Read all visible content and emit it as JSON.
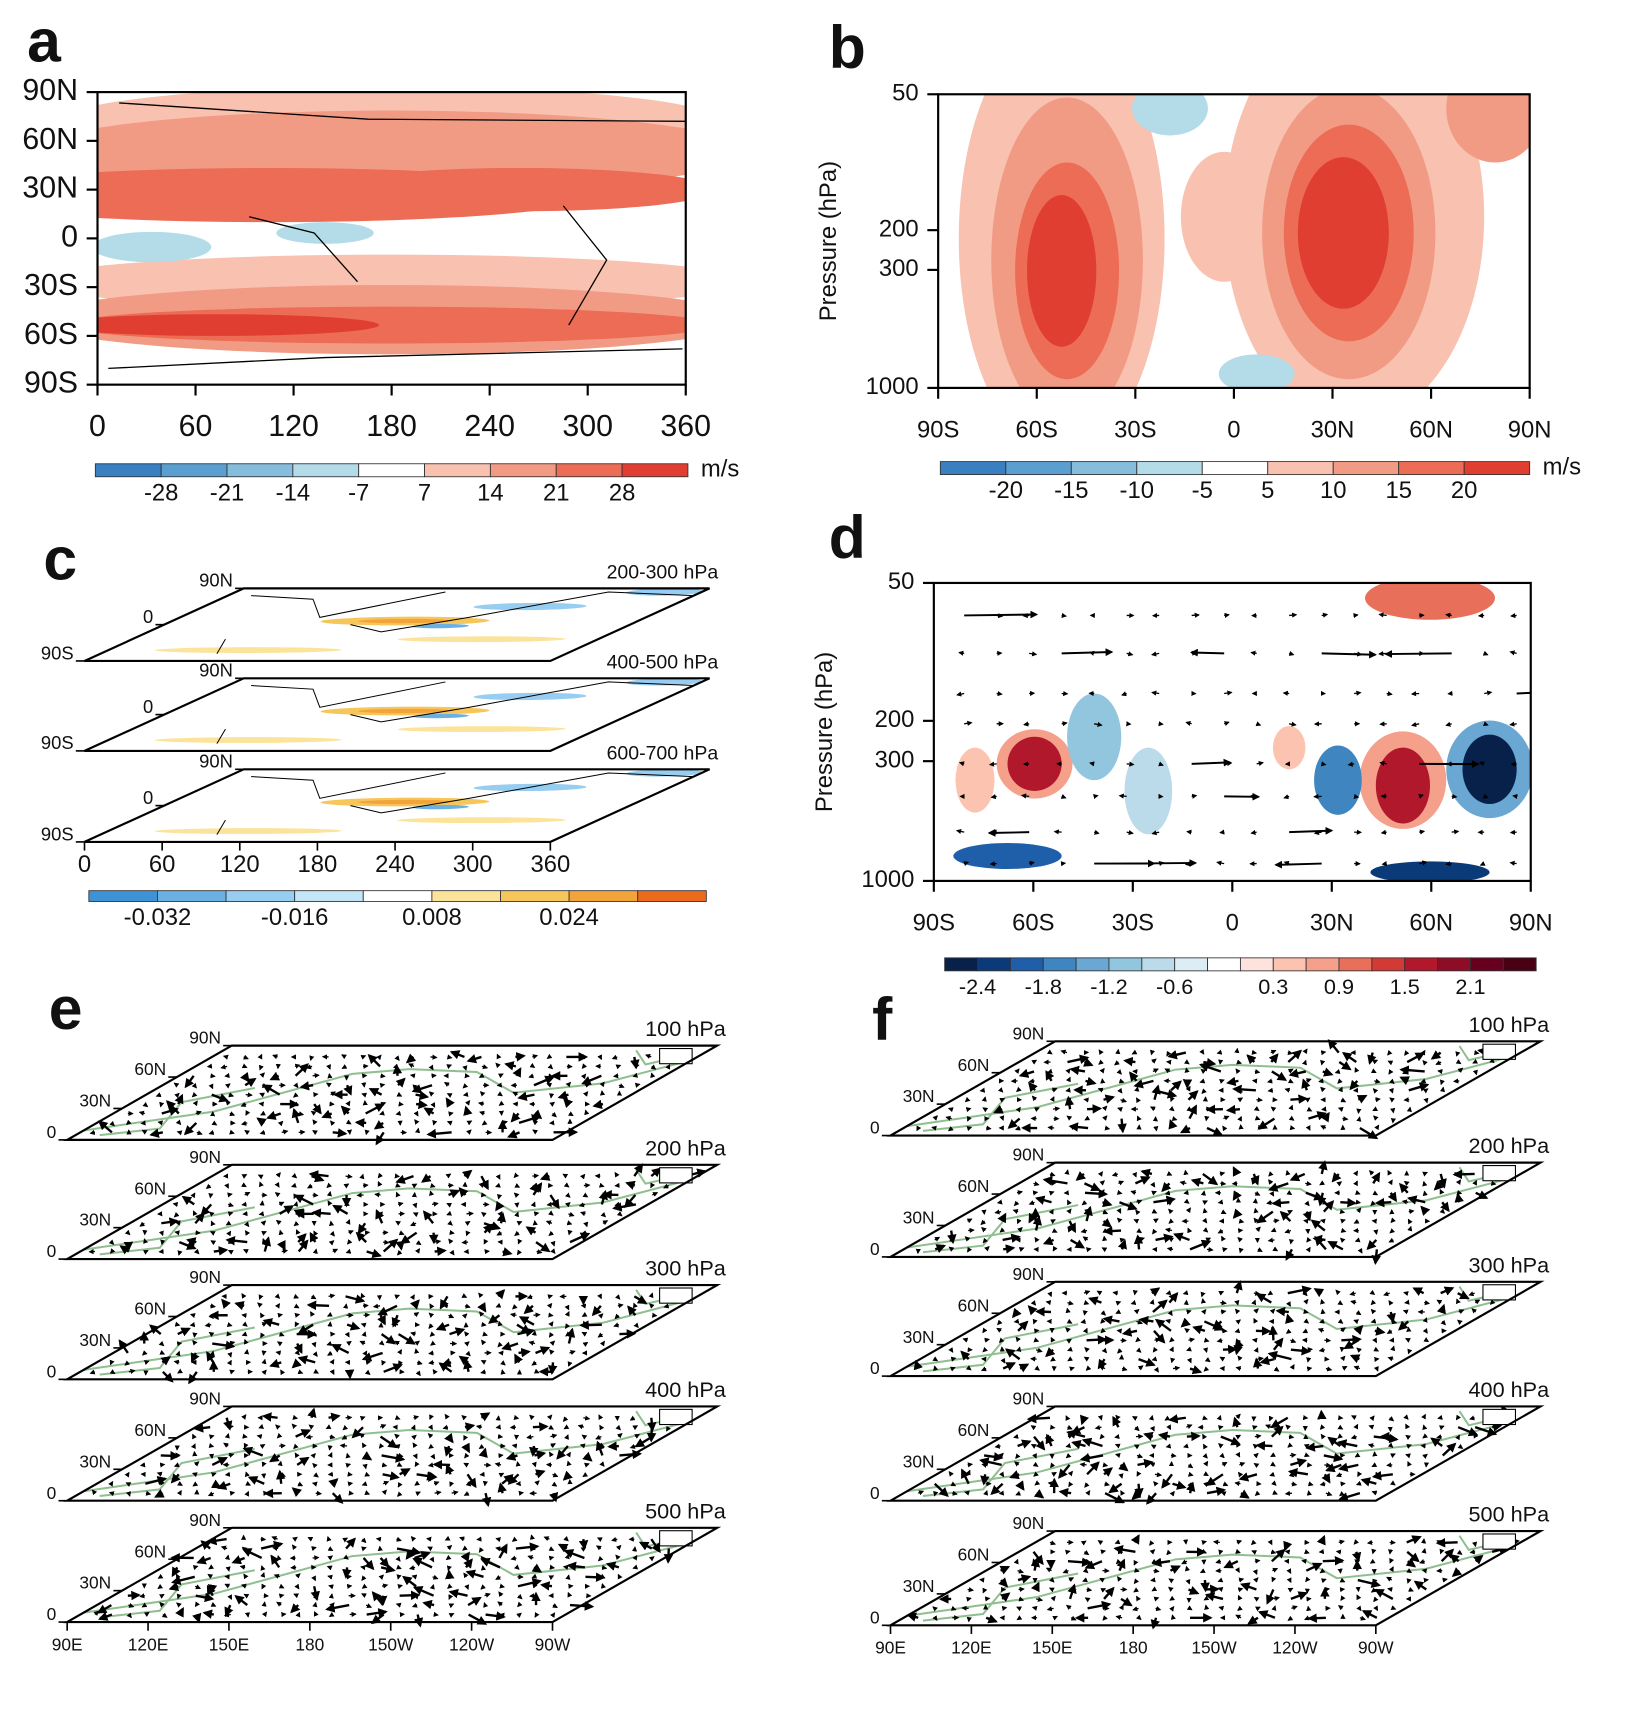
{
  "chart_data": [
    {
      "type": "contour_map",
      "label": "a",
      "xlim": [
        0,
        360
      ],
      "xticks": [
        0,
        60,
        120,
        180,
        240,
        300,
        360
      ],
      "ylim": [
        -90,
        90
      ],
      "yticks": [
        {
          "value": 90,
          "label": "90N"
        },
        {
          "value": 60,
          "label": "60N"
        },
        {
          "value": 30,
          "label": "30N"
        },
        0,
        {
          "value": -30,
          "label": "30S"
        },
        {
          "value": -60,
          "label": "60S"
        },
        {
          "value": -90,
          "label": "90S"
        }
      ],
      "colorbar": {
        "colors": [
          "#3a7fc0",
          "#5b9fd0",
          "#86bcdc",
          "#b3dbe8",
          "#ffffff",
          "#f8c1b0",
          "#f29b84",
          "#ec6c55",
          "#e03e30"
        ],
        "ticks": [
          -28,
          -21,
          -14,
          -7,
          7,
          14,
          21,
          28
        ],
        "unit": "m/s"
      }
    },
    {
      "type": "contour_section",
      "label": "b",
      "ylabel": "Pressure (hPa)",
      "ylim": [
        1000,
        50
      ],
      "ylog": true,
      "yticks": [
        50,
        200,
        300,
        1000
      ],
      "xlim": [
        -90,
        90
      ],
      "xticks": [
        {
          "value": -90,
          "label": "90S"
        },
        {
          "value": -60,
          "label": "60S"
        },
        {
          "value": -30,
          "label": "30S"
        },
        0,
        {
          "value": 30,
          "label": "30N"
        },
        {
          "value": 60,
          "label": "60N"
        },
        {
          "value": 90,
          "label": "90N"
        }
      ],
      "colorbar": {
        "colors": [
          "#3a7fc0",
          "#5b9fd0",
          "#86bcdc",
          "#b3dbe8",
          "#ffffff",
          "#f8c1b0",
          "#f29b84",
          "#ec6c55",
          "#e03e30"
        ],
        "ticks": [
          -20,
          -15,
          -10,
          -5,
          5,
          10,
          15,
          20
        ],
        "unit": "m/s"
      }
    },
    {
      "type": "layered_map",
      "label": "c",
      "layers": [
        "200-300 hPa",
        "400-500 hPa",
        "600-700 hPa"
      ],
      "ylim": [
        -90,
        90
      ],
      "yticks": [
        {
          "value": 90,
          "label": "90N"
        },
        0,
        {
          "value": -90,
          "label": "90S"
        }
      ],
      "xlim": [
        0,
        360
      ],
      "xticks": [
        0,
        60,
        120,
        180,
        240,
        300,
        360
      ],
      "colorbar": {
        "colors": [
          "#3e93d6",
          "#6bb0e3",
          "#97cdf0",
          "#c2e5f7",
          "#ffffff",
          "#fbe39a",
          "#f7c65a",
          "#f2a43a",
          "#ec6a1c"
        ],
        "ticks": [
          -0.032,
          -0.016,
          0.008,
          0.024
        ]
      }
    },
    {
      "type": "vector_section",
      "label": "d",
      "ylabel": "Pressure (hPa)",
      "ylim": [
        1000,
        50
      ],
      "ylog": true,
      "yticks": [
        50,
        200,
        300,
        1000
      ],
      "xlim": [
        -90,
        90
      ],
      "xticks": [
        {
          "value": -90,
          "label": "90S"
        },
        {
          "value": -60,
          "label": "60S"
        },
        {
          "value": -30,
          "label": "30S"
        },
        0,
        {
          "value": 30,
          "label": "30N"
        },
        {
          "value": 60,
          "label": "60N"
        },
        {
          "value": 90,
          "label": "90N"
        }
      ],
      "colorbar": {
        "colors": [
          "#08214a",
          "#0b3a78",
          "#1f5ea8",
          "#3f86c0",
          "#6aa8d3",
          "#92c5de",
          "#bcdbea",
          "#dcedf5",
          "#ffffff",
          "#fde3dc",
          "#fbc3b0",
          "#f4a08a",
          "#e8705b",
          "#d23a35",
          "#b2182b",
          "#8c0d25",
          "#67001f",
          "#4a0014"
        ],
        "ticks": [
          -2.4,
          -1.8,
          -1.2,
          -0.6,
          0.3,
          0.9,
          1.5,
          2.1
        ]
      }
    },
    {
      "type": "layered_vector_map",
      "label": "e",
      "layers": [
        "100 hPa",
        "200 hPa",
        "300 hPa",
        "400 hPa",
        "500 hPa"
      ],
      "ylim": [
        0,
        90
      ],
      "yticks": [
        0,
        {
          "value": 30,
          "label": "30N"
        },
        {
          "value": 60,
          "label": "60N"
        },
        {
          "value": 90,
          "label": "90N"
        }
      ],
      "xlim": [
        90,
        270
      ],
      "xticks": [
        {
          "value": 90,
          "label": "90E"
        },
        {
          "value": 120,
          "label": "120E"
        },
        {
          "value": 150,
          "label": "150E"
        },
        180,
        {
          "value": 210,
          "label": "150W"
        },
        {
          "value": 240,
          "label": "120W"
        },
        {
          "value": 270,
          "label": "90W"
        }
      ]
    },
    {
      "type": "layered_vector_map",
      "label": "f",
      "layers": [
        "100 hPa",
        "200 hPa",
        "300 hPa",
        "400 hPa",
        "500 hPa"
      ],
      "ylim": [
        0,
        90
      ],
      "yticks": [
        0,
        {
          "value": 30,
          "label": "30N"
        },
        {
          "value": 60,
          "label": "60N"
        },
        {
          "value": 90,
          "label": "90N"
        }
      ],
      "xlim": [
        90,
        270
      ],
      "xticks": [
        {
          "value": 90,
          "label": "90E"
        },
        {
          "value": 120,
          "label": "120E"
        },
        {
          "value": 150,
          "label": "150E"
        },
        180,
        {
          "value": 210,
          "label": "150W"
        },
        {
          "value": 240,
          "label": "120W"
        },
        {
          "value": 270,
          "label": "90W"
        }
      ]
    }
  ]
}
